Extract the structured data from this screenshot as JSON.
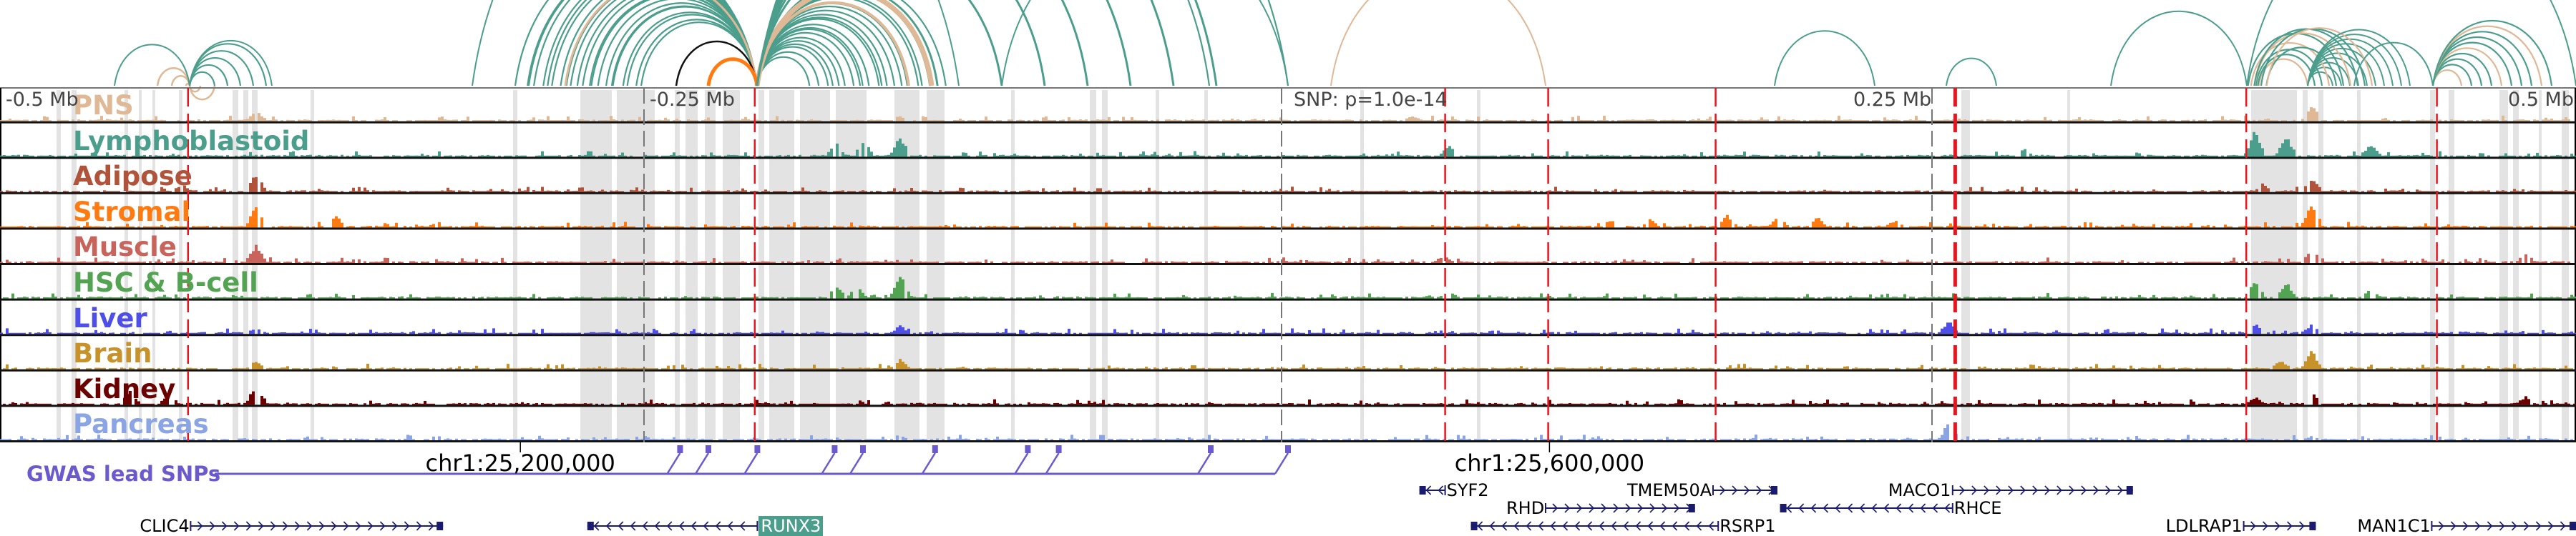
{
  "axis": {
    "labels": [
      {
        "text": "-0.5 Mb",
        "offset_mb": -0.5
      },
      {
        "text": "-0.25 Mb",
        "offset_mb": -0.25
      },
      {
        "text": "SNP: p=1.0e-14",
        "offset_mb": 0.0
      },
      {
        "text": "0.25 Mb",
        "offset_mb": 0.25
      },
      {
        "text": "0.5 Mb",
        "offset_mb": 0.5
      }
    ]
  },
  "tracks": [
    {
      "name": "PNS",
      "color": "#dfb896",
      "peaks": [
        [
          -0.401,
          0.35
        ],
        [
          -0.151,
          0.2
        ],
        [
          0.397,
          0.55
        ],
        [
          0.048,
          0.2
        ]
      ]
    },
    {
      "name": "Lymphoblastoid",
      "color": "#4c9e8c",
      "peaks": [
        [
          -0.151,
          0.75
        ],
        [
          -0.165,
          0.6
        ],
        [
          -0.176,
          0.5
        ],
        [
          0.375,
          0.95
        ],
        [
          0.387,
          0.7
        ],
        [
          0.062,
          0.4
        ],
        [
          0.42,
          0.45
        ],
        [
          0.285,
          0.3
        ]
      ]
    },
    {
      "name": "Adipose",
      "color": "#b0533a",
      "peaks": [
        [
          -0.401,
          0.65
        ],
        [
          -0.43,
          0.3
        ],
        [
          0.397,
          0.55
        ],
        [
          0.378,
          0.3
        ]
      ]
    },
    {
      "name": "Stromal",
      "color": "#ff7a10",
      "peaks": [
        [
          -0.401,
          0.85
        ],
        [
          -0.37,
          0.4
        ],
        [
          0.397,
          0.95
        ],
        [
          0.17,
          0.45
        ],
        [
          0.19,
          0.4
        ],
        [
          0.205,
          0.35
        ],
        [
          0.125,
          0.3
        ],
        [
          0.14,
          0.3
        ],
        [
          0.235,
          0.25
        ],
        [
          0.31,
          0.3
        ]
      ]
    },
    {
      "name": "Muscle",
      "color": "#c8645c",
      "peaks": [
        [
          -0.401,
          0.65
        ],
        [
          0.397,
          0.55
        ],
        [
          0.06,
          0.3
        ],
        [
          0.48,
          0.35
        ]
      ]
    },
    {
      "name": "HSC & B-cell",
      "color": "#52a352",
      "peaks": [
        [
          -0.151,
          0.85
        ],
        [
          -0.176,
          0.5
        ],
        [
          -0.168,
          0.45
        ],
        [
          0.375,
          0.65
        ],
        [
          0.387,
          0.55
        ],
        [
          0.42,
          0.35
        ],
        [
          0.062,
          0.3
        ]
      ]
    },
    {
      "name": "Liver",
      "color": "#4e4ee8",
      "peaks": [
        [
          -0.151,
          0.3
        ],
        [
          -0.401,
          0.25
        ],
        [
          0.256,
          0.45
        ],
        [
          0.375,
          0.4
        ],
        [
          0.397,
          0.35
        ]
      ]
    },
    {
      "name": "Brain",
      "color": "#c8922a",
      "peaks": [
        [
          -0.151,
          0.35
        ],
        [
          -0.401,
          0.3
        ],
        [
          0.397,
          0.65
        ],
        [
          0.385,
          0.35
        ]
      ]
    },
    {
      "name": "Kidney",
      "color": "#6b0000",
      "peaks": [
        [
          -0.401,
          0.75
        ],
        [
          -0.45,
          0.5
        ],
        [
          -0.435,
          0.45
        ],
        [
          0.397,
          0.45
        ],
        [
          0.375,
          0.3
        ],
        [
          0.48,
          0.3
        ]
      ]
    },
    {
      "name": "Pancreas",
      "color": "#8aa4e4",
      "peaks": [
        [
          0.256,
          0.6
        ],
        [
          -0.151,
          0.15
        ],
        [
          0.397,
          0.15
        ]
      ]
    }
  ],
  "red_lines_mb": [
    -0.427,
    -0.207,
    0.061,
    0.101,
    0.166,
    0.259,
    0.372,
    0.446
  ],
  "gray_lines_mb": [
    -0.25,
    -0.0025,
    0.25
  ],
  "gwas": {
    "label": "GWAS lead SNPs",
    "color": "#6a5acd",
    "snps_mb": [
      -0.236,
      -0.225,
      -0.206,
      -0.176,
      -0.165,
      -0.137,
      -0.101,
      -0.089,
      -0.03,
      0.0
    ]
  },
  "coordinates": [
    {
      "text": "chr1:25,200,000",
      "offset_mb": -0.298
    },
    {
      "text": "chr1:25,600,000",
      "offset_mb": 0.1015
    }
  ],
  "genes": [
    {
      "name": "CLIC4",
      "strand": "+",
      "row": 3,
      "start_mb": -0.426,
      "end_mb": -0.328,
      "label_side": "left",
      "highlight": false
    },
    {
      "name": "RUNX3",
      "strand": "-",
      "row": 3,
      "start_mb": -0.272,
      "end_mb": -0.206,
      "label_side": "right",
      "highlight": true
    },
    {
      "name": "SYF2",
      "strand": "-",
      "row": 1,
      "start_mb": 0.051,
      "end_mb": 0.061,
      "label_side": "right",
      "highlight": false
    },
    {
      "name": "TMEM50A",
      "strand": "+",
      "row": 1,
      "start_mb": 0.165,
      "end_mb": 0.19,
      "label_side": "left",
      "highlight": false
    },
    {
      "name": "MACO1",
      "strand": "+",
      "row": 1,
      "start_mb": 0.258,
      "end_mb": 0.328,
      "label_side": "left",
      "highlight": false
    },
    {
      "name": "RHD",
      "strand": "+",
      "row": 2,
      "start_mb": 0.1,
      "end_mb": 0.158,
      "label_side": "left",
      "highlight": false
    },
    {
      "name": "RHCE",
      "strand": "-",
      "row": 2,
      "start_mb": 0.191,
      "end_mb": 0.258,
      "label_side": "right",
      "highlight": false
    },
    {
      "name": "RSRP1",
      "strand": "-",
      "row": 3,
      "start_mb": 0.071,
      "end_mb": 0.167,
      "label_side": "right",
      "highlight": false
    },
    {
      "name": "LDLRAP1",
      "strand": "+",
      "row": 3,
      "start_mb": 0.371,
      "end_mb": 0.399,
      "label_side": "left",
      "highlight": false
    },
    {
      "name": "MAN1C1",
      "strand": "+",
      "row": 3,
      "start_mb": 0.444,
      "end_mb": 0.5,
      "label_side": "left",
      "highlight": false
    }
  ],
  "colors": {
    "gene": "#1a1a6e",
    "red_line": "#e8141e",
    "shade": "#e3e3e3",
    "arc_teal": "#4c9e8c",
    "arc_tan": "#dfb896",
    "arc_orange": "#ff7a10"
  }
}
